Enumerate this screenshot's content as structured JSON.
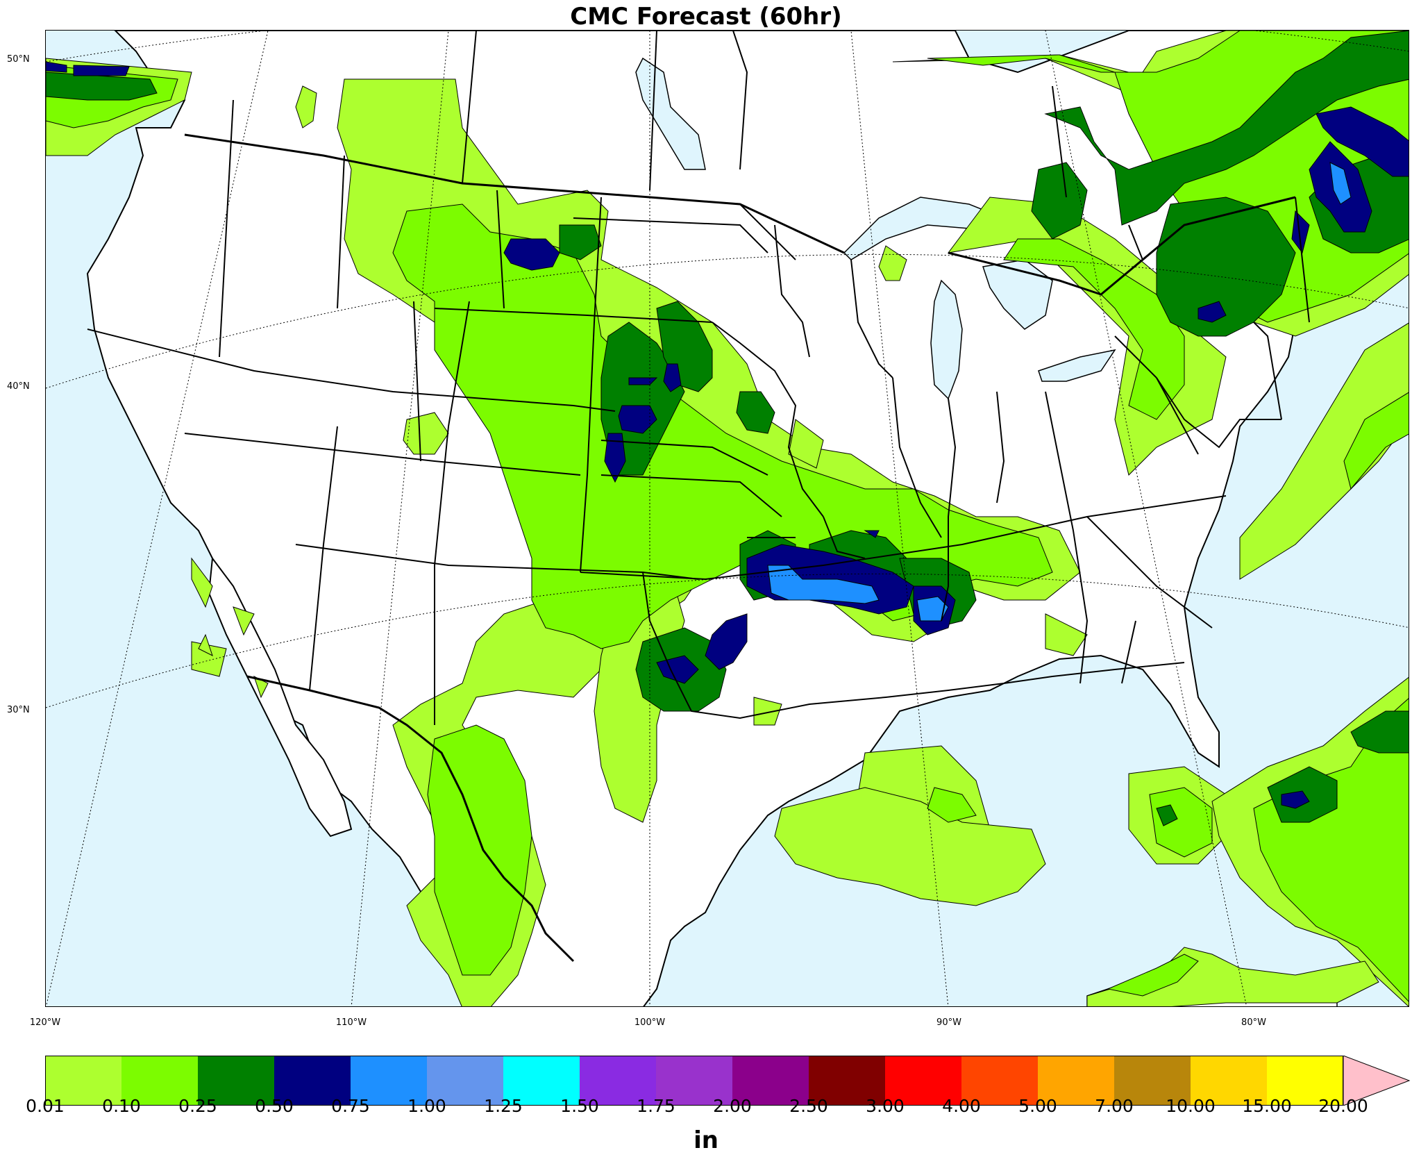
{
  "title": "CMC Forecast (60hr)",
  "units": "in",
  "lon_labels": [
    "120°W",
    "110°W",
    "100°W",
    "90°W",
    "80°W"
  ],
  "lat_labels": [
    "50°N",
    "40°N",
    "30°N"
  ],
  "colorbar": {
    "ticks": [
      "0.01",
      "0.10",
      "0.25",
      "0.50",
      "0.75",
      "1.00",
      "1.25",
      "1.50",
      "1.75",
      "2.00",
      "2.50",
      "3.00",
      "4.00",
      "5.00",
      "7.00",
      "10.00",
      "15.00",
      "20.00"
    ],
    "colors": [
      "#adff2f",
      "#7cfc00",
      "#008000",
      "#000080",
      "#1e90ff",
      "#6495ed",
      "#00ffff",
      "#8a2be2",
      "#9932cc",
      "#8b008b",
      "#800000",
      "#ff0000",
      "#ff4500",
      "#ffa500",
      "#b8860b",
      "#ffd700",
      "#ffff00"
    ],
    "extend_color": "#ffc0cb"
  },
  "colors": {
    "ocean": "#dff5fd",
    "land": "#ffffff"
  }
}
